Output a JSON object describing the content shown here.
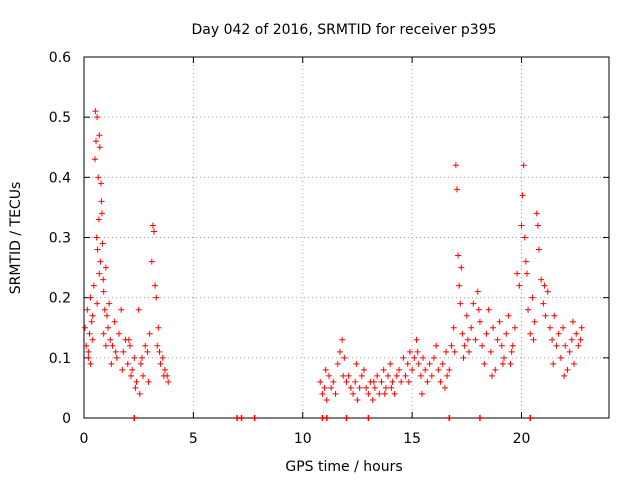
{
  "chart_data": {
    "type": "scatter",
    "title": "Day 042 of 2016, SRMTID for receiver p395",
    "xlabel": "GPS time / hours",
    "ylabel": "SRMTID / TECUs",
    "xlim": [
      0,
      24
    ],
    "ylim": [
      0,
      0.6
    ],
    "xticks": [
      0,
      5,
      10,
      15,
      20
    ],
    "yticks": [
      0,
      0.1,
      0.2,
      0.3,
      0.4,
      0.5,
      0.6
    ],
    "xtick_labels": [
      "0",
      "5",
      "10",
      "15",
      "20"
    ],
    "ytick_labels": [
      "0",
      "0.1",
      "0.2",
      "0.3",
      "0.4",
      "0.5",
      "0.6"
    ],
    "grid": true,
    "marker": "+",
    "series_color": "#ff0000",
    "series": [
      {
        "name": "SRMTID",
        "points": [
          [
            0.05,
            0.15
          ],
          [
            0.1,
            0.12
          ],
          [
            0.15,
            0.18
          ],
          [
            0.2,
            0.1
          ],
          [
            0.25,
            0.14
          ],
          [
            0.3,
            0.2
          ],
          [
            0.35,
            0.16
          ],
          [
            0.4,
            0.13
          ],
          [
            0.45,
            0.22
          ],
          [
            0.5,
            0.43
          ],
          [
            0.52,
            0.51
          ],
          [
            0.55,
            0.46
          ],
          [
            0.58,
            0.3
          ],
          [
            0.6,
            0.5
          ],
          [
            0.62,
            0.28
          ],
          [
            0.65,
            0.4
          ],
          [
            0.68,
            0.33
          ],
          [
            0.7,
            0.47
          ],
          [
            0.72,
            0.45
          ],
          [
            0.75,
            0.26
          ],
          [
            0.78,
            0.39
          ],
          [
            0.8,
            0.36
          ],
          [
            0.82,
            0.34
          ],
          [
            0.85,
            0.29
          ],
          [
            0.88,
            0.23
          ],
          [
            0.9,
            0.21
          ],
          [
            0.95,
            0.18
          ],
          [
            1.0,
            0.25
          ],
          [
            1.05,
            0.17
          ],
          [
            1.1,
            0.15
          ],
          [
            1.15,
            0.19
          ],
          [
            1.2,
            0.13
          ],
          [
            1.3,
            0.12
          ],
          [
            1.4,
            0.16
          ],
          [
            1.5,
            0.1
          ],
          [
            1.6,
            0.14
          ],
          [
            1.7,
            0.18
          ],
          [
            1.8,
            0.11
          ],
          [
            1.9,
            0.13
          ],
          [
            2.0,
            0.09
          ],
          [
            2.1,
            0.12
          ],
          [
            2.2,
            0.08
          ],
          [
            2.3,
            0.1
          ],
          [
            2.4,
            0.06
          ],
          [
            2.5,
            0.18
          ],
          [
            2.6,
            0.09
          ],
          [
            2.7,
            0.07
          ],
          [
            2.8,
            0.12
          ],
          [
            2.9,
            0.11
          ],
          [
            3.0,
            0.14
          ],
          [
            3.1,
            0.26
          ],
          [
            3.15,
            0.32
          ],
          [
            3.2,
            0.31
          ],
          [
            3.25,
            0.22
          ],
          [
            3.3,
            0.2
          ],
          [
            3.35,
            0.12
          ],
          [
            3.4,
            0.15
          ],
          [
            3.5,
            0.09
          ],
          [
            3.6,
            0.1
          ],
          [
            3.7,
            0.08
          ],
          [
            3.8,
            0.07
          ],
          [
            3.85,
            0.06
          ],
          [
            0.2,
            0.11
          ],
          [
            0.4,
            0.17
          ],
          [
            0.6,
            0.19
          ],
          [
            0.9,
            0.14
          ],
          [
            1.25,
            0.09
          ],
          [
            1.45,
            0.11
          ],
          [
            1.75,
            0.08
          ],
          [
            2.05,
            0.13
          ],
          [
            2.35,
            0.05
          ],
          [
            2.65,
            0.1
          ],
          [
            2.95,
            0.06
          ],
          [
            3.45,
            0.11
          ],
          [
            3.65,
            0.07
          ],
          [
            0.3,
            0.09
          ],
          [
            0.7,
            0.24
          ],
          [
            1.0,
            0.12
          ],
          [
            2.15,
            0.07
          ],
          [
            2.55,
            0.04
          ],
          [
            10.8,
            0.06
          ],
          [
            10.9,
            0.04
          ],
          [
            11.0,
            0.05
          ],
          [
            11.1,
            0.03
          ],
          [
            11.2,
            0.07
          ],
          [
            11.3,
            0.05
          ],
          [
            11.4,
            0.06
          ],
          [
            11.5,
            0.04
          ],
          [
            11.6,
            0.09
          ],
          [
            11.7,
            0.11
          ],
          [
            11.8,
            0.13
          ],
          [
            11.9,
            0.1
          ],
          [
            12.0,
            0.06
          ],
          [
            12.1,
            0.07
          ],
          [
            12.2,
            0.05
          ],
          [
            12.3,
            0.04
          ],
          [
            12.4,
            0.06
          ],
          [
            12.5,
            0.03
          ],
          [
            12.6,
            0.05
          ],
          [
            12.7,
            0.07
          ],
          [
            12.8,
            0.08
          ],
          [
            12.9,
            0.05
          ],
          [
            13.0,
            0.04
          ],
          [
            13.1,
            0.06
          ],
          [
            13.2,
            0.03
          ],
          [
            13.3,
            0.05
          ],
          [
            13.4,
            0.07
          ],
          [
            13.5,
            0.04
          ],
          [
            13.6,
            0.06
          ],
          [
            13.7,
            0.08
          ],
          [
            13.8,
            0.05
          ],
          [
            13.9,
            0.07
          ],
          [
            14.0,
            0.09
          ],
          [
            14.1,
            0.06
          ],
          [
            14.2,
            0.04
          ],
          [
            14.3,
            0.07
          ],
          [
            14.4,
            0.08
          ],
          [
            14.5,
            0.06
          ],
          [
            14.6,
            0.1
          ],
          [
            14.7,
            0.07
          ],
          [
            14.8,
            0.09
          ],
          [
            14.9,
            0.11
          ],
          [
            15.0,
            0.08
          ],
          [
            15.1,
            0.1
          ],
          [
            15.2,
            0.13
          ],
          [
            15.3,
            0.09
          ],
          [
            15.4,
            0.07
          ],
          [
            15.5,
            0.1
          ],
          [
            15.6,
            0.08
          ],
          [
            15.7,
            0.06
          ],
          [
            15.8,
            0.09
          ],
          [
            15.9,
            0.07
          ],
          [
            16.0,
            0.1
          ],
          [
            16.1,
            0.12
          ],
          [
            16.2,
            0.08
          ],
          [
            16.3,
            0.06
          ],
          [
            16.4,
            0.09
          ],
          [
            16.5,
            0.05
          ],
          [
            16.6,
            0.07
          ],
          [
            16.7,
            0.08
          ],
          [
            16.8,
            0.12
          ],
          [
            16.9,
            0.15
          ],
          [
            17.0,
            0.42
          ],
          [
            17.05,
            0.38
          ],
          [
            17.1,
            0.27
          ],
          [
            17.15,
            0.22
          ],
          [
            17.2,
            0.19
          ],
          [
            17.3,
            0.14
          ],
          [
            17.4,
            0.12
          ],
          [
            17.5,
            0.17
          ],
          [
            17.6,
            0.11
          ],
          [
            17.7,
            0.15
          ],
          [
            17.8,
            0.19
          ],
          [
            17.9,
            0.13
          ],
          [
            18.0,
            0.21
          ],
          [
            18.1,
            0.16
          ],
          [
            18.2,
            0.12
          ],
          [
            18.3,
            0.09
          ],
          [
            18.4,
            0.14
          ],
          [
            18.5,
            0.18
          ],
          [
            18.6,
            0.11
          ],
          [
            18.7,
            0.15
          ],
          [
            18.8,
            0.08
          ],
          [
            18.9,
            0.13
          ],
          [
            19.0,
            0.16
          ],
          [
            19.1,
            0.12
          ],
          [
            19.2,
            0.1
          ],
          [
            19.3,
            0.14
          ],
          [
            19.4,
            0.17
          ],
          [
            19.5,
            0.09
          ],
          [
            19.6,
            0.12
          ],
          [
            19.7,
            0.15
          ],
          [
            19.8,
            0.24
          ],
          [
            19.9,
            0.22
          ],
          [
            20.0,
            0.32
          ],
          [
            20.05,
            0.37
          ],
          [
            20.1,
            0.42
          ],
          [
            20.15,
            0.3
          ],
          [
            20.2,
            0.26
          ],
          [
            20.3,
            0.18
          ],
          [
            20.4,
            0.14
          ],
          [
            20.5,
            0.2
          ],
          [
            20.6,
            0.16
          ],
          [
            20.7,
            0.34
          ],
          [
            20.75,
            0.32
          ],
          [
            20.8,
            0.28
          ],
          [
            20.9,
            0.23
          ],
          [
            21.0,
            0.19
          ],
          [
            21.1,
            0.17
          ],
          [
            21.2,
            0.21
          ],
          [
            21.3,
            0.15
          ],
          [
            21.4,
            0.13
          ],
          [
            21.5,
            0.17
          ],
          [
            21.6,
            0.12
          ],
          [
            21.7,
            0.14
          ],
          [
            21.8,
            0.1
          ],
          [
            21.9,
            0.15
          ],
          [
            22.0,
            0.12
          ],
          [
            22.1,
            0.08
          ],
          [
            22.2,
            0.11
          ],
          [
            22.3,
            0.13
          ],
          [
            22.4,
            0.09
          ],
          [
            22.5,
            0.14
          ],
          [
            22.6,
            0.12
          ],
          [
            22.7,
            0.13
          ],
          [
            22.75,
            0.15
          ],
          [
            17.25,
            0.25
          ],
          [
            17.35,
            0.1
          ],
          [
            17.55,
            0.13
          ],
          [
            18.05,
            0.18
          ],
          [
            18.65,
            0.07
          ],
          [
            19.15,
            0.09
          ],
          [
            19.55,
            0.11
          ],
          [
            20.25,
            0.24
          ],
          [
            20.55,
            0.13
          ],
          [
            21.05,
            0.22
          ],
          [
            21.45,
            0.09
          ],
          [
            21.95,
            0.07
          ],
          [
            22.35,
            0.16
          ],
          [
            16.95,
            0.11
          ],
          [
            11.05,
            0.08
          ],
          [
            12.45,
            0.09
          ],
          [
            13.25,
            0.06
          ],
          [
            14.05,
            0.05
          ],
          [
            14.85,
            0.06
          ],
          [
            15.45,
            0.04
          ],
          [
            15.25,
            0.11
          ],
          [
            16.55,
            0.11
          ],
          [
            11.85,
            0.07
          ],
          [
            13.75,
            0.04
          ]
        ]
      }
    ],
    "zero_markers_x": [
      2.3,
      7.0,
      7.2,
      7.8,
      10.9,
      11.1,
      12.0,
      13.0,
      16.7,
      18.1,
      20.4
    ]
  }
}
